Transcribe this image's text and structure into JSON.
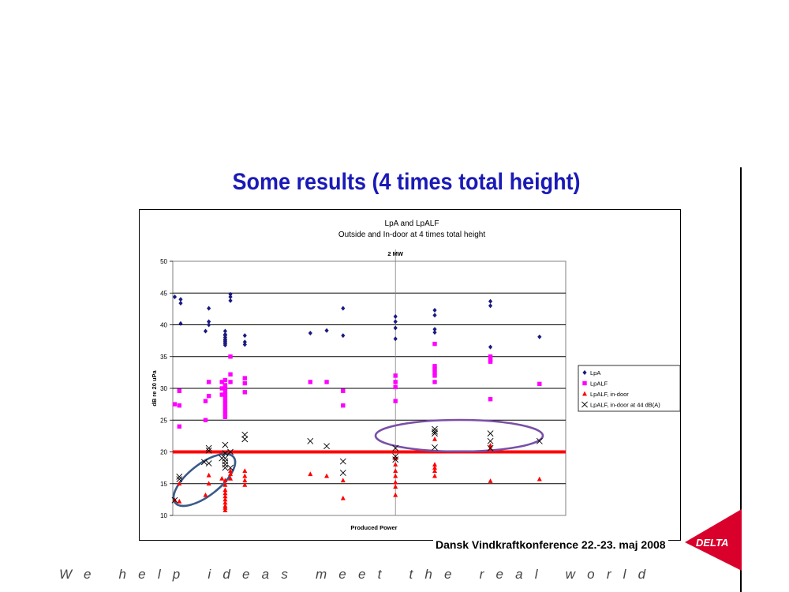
{
  "slide": {
    "title": "Some results (4 times total height)",
    "footer": "Dansk Vindkraftkonference 22.-23. maj 2008",
    "tagline": "We help ideas meet the real world",
    "logo_text": "DELTA",
    "accent_color": "#1a1ab8",
    "logo_color": "#d9002b"
  },
  "chart_data": {
    "type": "scatter",
    "title": "LpA and LpALF",
    "subtitle": "Outside and In-door at 4 times total height",
    "annotation": "2 MW",
    "xlabel": "Produced Power",
    "ylabel": "dB re 20 uPa",
    "ylim": [
      10,
      50
    ],
    "yticks": [
      10,
      15,
      20,
      25,
      30,
      35,
      40,
      45,
      50
    ],
    "grid": true,
    "legend_position": "right",
    "reference_line": {
      "y": 20,
      "color": "#ff0000"
    },
    "series": [
      {
        "name": "LpA",
        "marker": "diamond",
        "color": "#1a1a80",
        "points": [
          [
            0.3,
            44.4
          ],
          [
            1.2,
            44.0
          ],
          [
            1.2,
            43.4
          ],
          [
            1.2,
            40.2
          ],
          [
            5.5,
            42.6
          ],
          [
            5.5,
            40.5
          ],
          [
            5.5,
            40.0
          ],
          [
            5.0,
            39.0
          ],
          [
            8.0,
            39.0
          ],
          [
            8.0,
            38.5
          ],
          [
            8.0,
            38.0
          ],
          [
            8.0,
            37.6
          ],
          [
            8.0,
            37.2
          ],
          [
            8.0,
            37.0
          ],
          [
            8.0,
            38.3
          ],
          [
            8.0,
            37.7
          ],
          [
            8.0,
            37.4
          ],
          [
            8.0,
            36.8
          ],
          [
            8.8,
            44.8
          ],
          [
            8.8,
            44.4
          ],
          [
            8.8,
            43.8
          ],
          [
            11.0,
            38.3
          ],
          [
            11.0,
            37.3
          ],
          [
            11.0,
            36.9
          ],
          [
            21.0,
            38.7
          ],
          [
            23.5,
            39.1
          ],
          [
            26.0,
            42.6
          ],
          [
            26.0,
            38.3
          ],
          [
            34.0,
            41.3
          ],
          [
            34.0,
            40.5
          ],
          [
            34.0,
            39.5
          ],
          [
            34.0,
            37.8
          ],
          [
            40.0,
            42.3
          ],
          [
            40.0,
            41.5
          ],
          [
            40.0,
            39.3
          ],
          [
            40.0,
            38.8
          ],
          [
            48.5,
            43.7
          ],
          [
            48.5,
            43.0
          ],
          [
            48.5,
            36.5
          ],
          [
            56.0,
            38.1
          ]
        ]
      },
      {
        "name": "LpALF",
        "marker": "square",
        "color": "#ff00ff",
        "points": [
          [
            0.3,
            27.5
          ],
          [
            1.0,
            29.6
          ],
          [
            1.0,
            27.3
          ],
          [
            1.0,
            24.0
          ],
          [
            5.0,
            28.0
          ],
          [
            5.0,
            25.0
          ],
          [
            5.5,
            31.0
          ],
          [
            5.5,
            28.8
          ],
          [
            7.5,
            31.0
          ],
          [
            7.5,
            30.0
          ],
          [
            7.5,
            29.0
          ],
          [
            8.0,
            31.3
          ],
          [
            8.0,
            30.5
          ],
          [
            8.0,
            30.0
          ],
          [
            8.0,
            29.5
          ],
          [
            8.0,
            29.0
          ],
          [
            8.0,
            28.5
          ],
          [
            8.0,
            28.0
          ],
          [
            8.0,
            27.5
          ],
          [
            8.0,
            27.0
          ],
          [
            8.0,
            26.5
          ],
          [
            8.0,
            26.0
          ],
          [
            8.0,
            25.5
          ],
          [
            8.8,
            35.0
          ],
          [
            8.8,
            32.2
          ],
          [
            8.8,
            31.0
          ],
          [
            11.0,
            31.6
          ],
          [
            11.0,
            30.8
          ],
          [
            11.0,
            29.4
          ],
          [
            21.0,
            31.0
          ],
          [
            23.5,
            31.0
          ],
          [
            26.0,
            29.6
          ],
          [
            26.0,
            27.3
          ],
          [
            34.0,
            32.0
          ],
          [
            34.0,
            31.0
          ],
          [
            34.0,
            30.2
          ],
          [
            34.0,
            28.0
          ],
          [
            40.0,
            37.0
          ],
          [
            40.0,
            33.5
          ],
          [
            40.0,
            33.0
          ],
          [
            40.0,
            32.5
          ],
          [
            40.0,
            32.0
          ],
          [
            40.0,
            31.0
          ],
          [
            48.5,
            35.0
          ],
          [
            48.5,
            34.5
          ],
          [
            48.5,
            34.2
          ],
          [
            48.5,
            28.3
          ],
          [
            56.0,
            30.7
          ]
        ]
      },
      {
        "name": "LpALF, in-door",
        "marker": "triangle",
        "color": "#ff0000",
        "points": [
          [
            0.3,
            12.4
          ],
          [
            1.0,
            15.0
          ],
          [
            1.0,
            12.2
          ],
          [
            5.0,
            13.2
          ],
          [
            5.5,
            16.3
          ],
          [
            5.5,
            15.0
          ],
          [
            7.5,
            15.8
          ],
          [
            8.0,
            15.5
          ],
          [
            8.0,
            14.8
          ],
          [
            8.0,
            14.0
          ],
          [
            8.0,
            13.5
          ],
          [
            8.0,
            13.0
          ],
          [
            8.0,
            12.5
          ],
          [
            8.0,
            12.0
          ],
          [
            8.0,
            11.5
          ],
          [
            8.0,
            11.2
          ],
          [
            8.0,
            10.8
          ],
          [
            8.8,
            17.0
          ],
          [
            8.8,
            16.5
          ],
          [
            8.8,
            15.8
          ],
          [
            11.0,
            17.0
          ],
          [
            11.0,
            16.2
          ],
          [
            11.0,
            15.5
          ],
          [
            11.0,
            14.8
          ],
          [
            21.0,
            16.5
          ],
          [
            23.5,
            16.2
          ],
          [
            26.0,
            15.5
          ],
          [
            26.0,
            12.7
          ],
          [
            34.0,
            19.0
          ],
          [
            34.0,
            18.0
          ],
          [
            34.0,
            17.0
          ],
          [
            34.0,
            16.2
          ],
          [
            34.0,
            15.2
          ],
          [
            34.0,
            14.5
          ],
          [
            34.0,
            13.2
          ],
          [
            40.0,
            22.0
          ],
          [
            40.0,
            18.0
          ],
          [
            40.0,
            17.5
          ],
          [
            40.0,
            17.0
          ],
          [
            40.0,
            16.2
          ],
          [
            48.5,
            21.0
          ],
          [
            48.5,
            20.5
          ],
          [
            48.5,
            15.4
          ],
          [
            56.0,
            15.7
          ]
        ]
      },
      {
        "name": "LpALF, in-door at 44 dB(A)",
        "marker": "x",
        "color": "#000000",
        "points": [
          [
            0.3,
            12.4
          ],
          [
            1.0,
            16.1
          ],
          [
            1.0,
            15.7
          ],
          [
            4.8,
            18.4
          ],
          [
            5.5,
            20.6
          ],
          [
            5.5,
            20.2
          ],
          [
            5.5,
            18.2
          ],
          [
            7.5,
            19.0
          ],
          [
            8.0,
            21.1
          ],
          [
            8.0,
            19.8
          ],
          [
            8.0,
            19.0
          ],
          [
            8.0,
            18.5
          ],
          [
            8.0,
            18.0
          ],
          [
            8.0,
            17.5
          ],
          [
            8.8,
            20.0
          ],
          [
            8.8,
            17.5
          ],
          [
            11.0,
            22.7
          ],
          [
            11.0,
            22.0
          ],
          [
            21.0,
            21.7
          ],
          [
            23.5,
            20.9
          ],
          [
            26.0,
            18.5
          ],
          [
            26.0,
            16.7
          ],
          [
            34.0,
            20.6
          ],
          [
            34.0,
            19.3
          ],
          [
            34.0,
            18.8
          ],
          [
            40.0,
            23.6
          ],
          [
            40.0,
            23.2
          ],
          [
            40.0,
            22.9
          ],
          [
            40.0,
            20.7
          ],
          [
            48.5,
            22.9
          ],
          [
            48.5,
            21.7
          ],
          [
            48.5,
            20.6
          ],
          [
            56.0,
            21.7
          ]
        ]
      }
    ]
  }
}
